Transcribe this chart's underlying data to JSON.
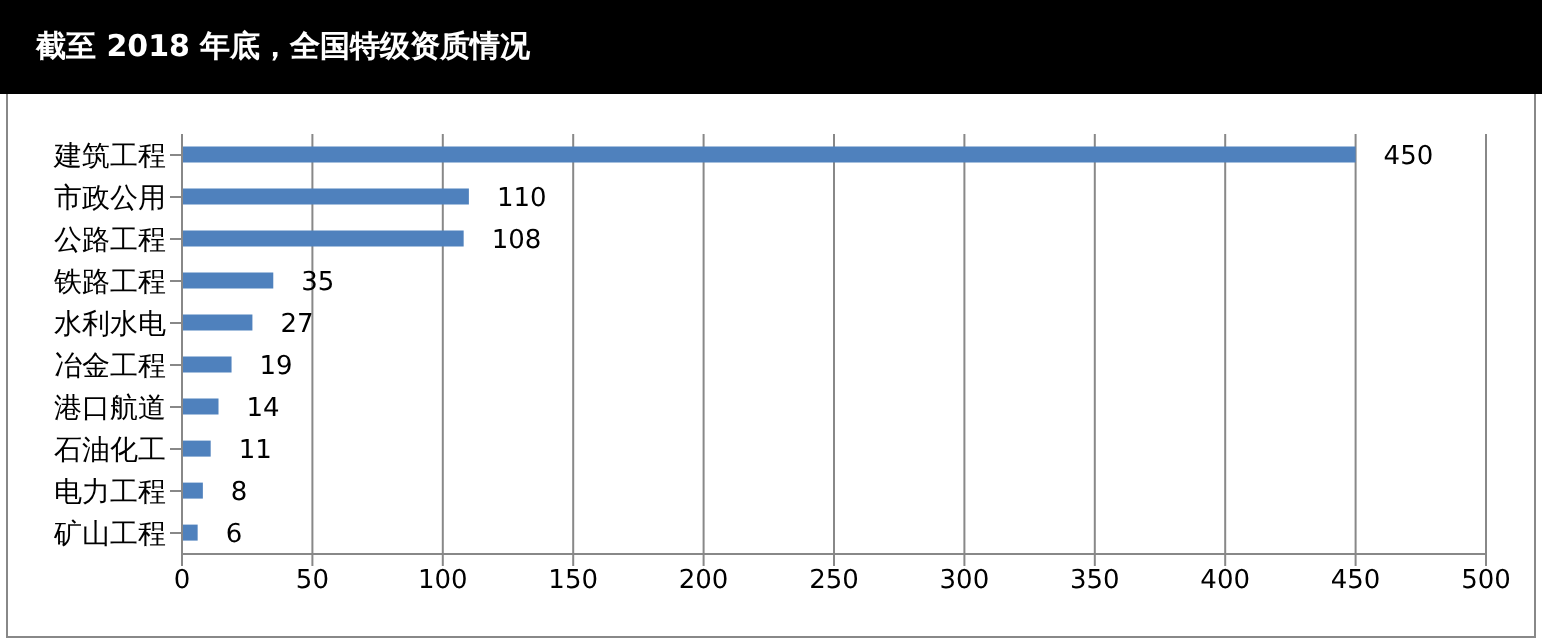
{
  "chart_data": {
    "type": "bar",
    "orientation": "horizontal",
    "title": "截至 2018 年底，全国特级资质情况",
    "categories": [
      "建筑工程",
      "市政公用",
      "公路工程",
      "铁路工程",
      "水利水电",
      "冶金工程",
      "港口航道",
      "石油化工",
      "电力工程",
      "矿山工程"
    ],
    "values": [
      450,
      110,
      108,
      35,
      27,
      19,
      14,
      11,
      8,
      6
    ],
    "color": "#4f81bd",
    "xlim": [
      0,
      500
    ],
    "xticks": [
      0,
      50,
      100,
      150,
      200,
      250,
      300,
      350,
      400,
      450,
      500
    ],
    "grid": "x",
    "data_labels": true,
    "legend": false
  }
}
